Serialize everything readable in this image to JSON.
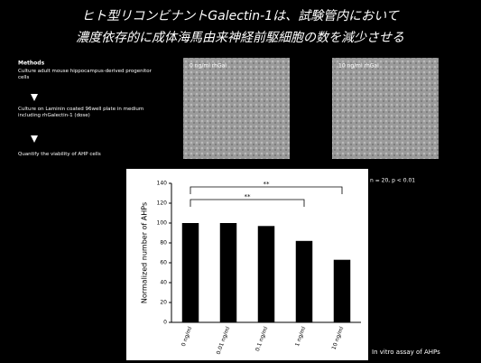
{
  "slide": {
    "title_lines": [
      "ヒト型リコンビナントGalectin-1は、試験管内において",
      "濃度依存的に成体海馬由来神経前駆細胞の数を減少させる"
    ],
    "methods_title": "Methods",
    "steps": [
      "Culture adult mouse hippocampus-derived progenitor cells",
      "Culture on Laminin coated 96well plate in medium including rhGalectin-1 (dose)",
      "Quantify the viability of AHP cells"
    ],
    "image_labels": [
      "0 ng/ml rhGal",
      "10 ng/ml rhGal"
    ],
    "stats_note": "n = 20, p < 0.01",
    "caption": "In vitro assay of AHPs"
  },
  "chart_data": {
    "type": "bar",
    "y_label": "Normalized number of AHPs",
    "categories": [
      "0 ng/ml",
      "0.01 ng/ml",
      "0.1 ng/ml",
      "1 ng/ml",
      "10 ng/ml"
    ],
    "values": [
      100,
      100,
      97,
      82,
      63
    ],
    "color": "#000000",
    "ylim": [
      0,
      140
    ],
    "yticks": [
      0,
      20,
      40,
      60,
      80,
      100,
      120,
      140
    ],
    "annotations": [
      "**",
      "**"
    ]
  }
}
